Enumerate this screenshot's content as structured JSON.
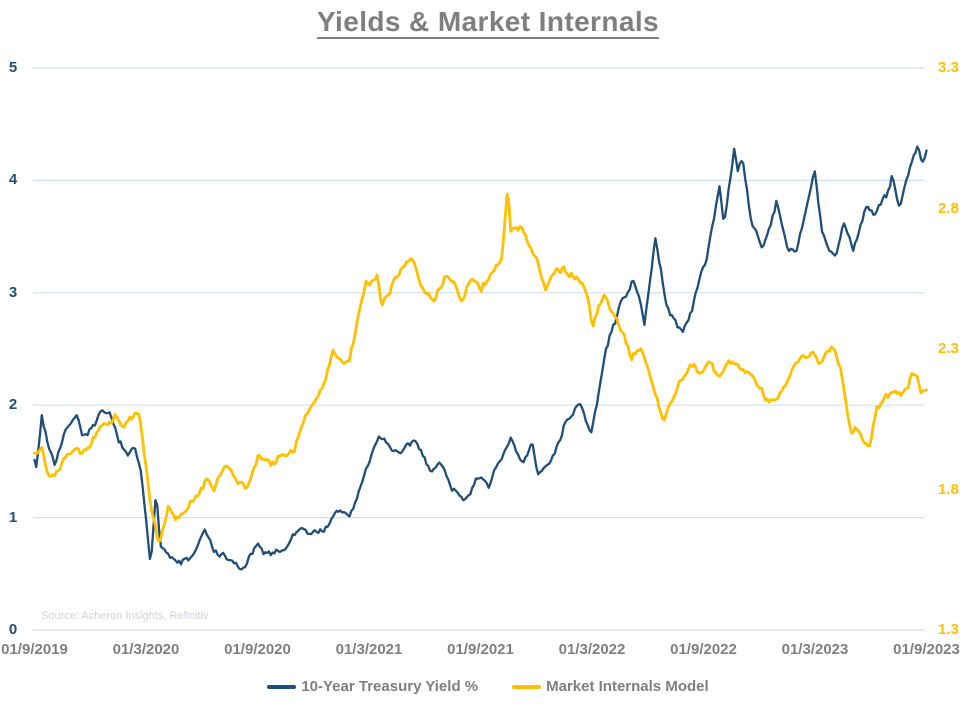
{
  "chart_data": {
    "type": "line",
    "title": "Yields & Market Internals",
    "source_note": "Source: Acheron Insights, Refinitiv",
    "grid_color": "#cfe0ef",
    "legend_position": "bottom",
    "x_axis": {
      "start_date": "2019-09-01",
      "end_date": "2023-09-01",
      "tick_labels": [
        "01/9/2019",
        "01/3/2020",
        "01/9/2020",
        "01/3/2021",
        "01/9/2021",
        "01/3/2022",
        "01/9/2022",
        "01/3/2023",
        "01/9/2023"
      ],
      "grid": false
    },
    "y_axis_left": {
      "min": 0,
      "max": 5,
      "ticks": [
        0,
        1,
        2,
        3,
        4,
        5
      ],
      "tick_color": "#1f4e79",
      "grid": true
    },
    "y_axis_right": {
      "min": 1.3,
      "max": 3.3,
      "ticks": [
        1.3,
        1.8,
        2.3,
        2.8,
        3.3
      ],
      "tick_color": "#ffc000",
      "grid": false
    },
    "series": [
      {
        "name": "10-Year Treasury Yield %",
        "axis": "left",
        "color": "#1f4e79",
        "stroke_width": 2.3,
        "seed": 7,
        "data_name": "treasury-yield-line",
        "points": [
          [
            "2019-09-01",
            1.55
          ],
          [
            "2019-09-04",
            1.44
          ],
          [
            "2019-09-13",
            1.9
          ],
          [
            "2019-09-24",
            1.64
          ],
          [
            "2019-10-04",
            1.52
          ],
          [
            "2019-10-20",
            1.76
          ],
          [
            "2019-11-08",
            1.94
          ],
          [
            "2019-11-20",
            1.74
          ],
          [
            "2019-12-05",
            1.8
          ],
          [
            "2019-12-19",
            1.92
          ],
          [
            "2020-01-02",
            1.88
          ],
          [
            "2020-01-31",
            1.52
          ],
          [
            "2020-02-12",
            1.63
          ],
          [
            "2020-02-21",
            1.47
          ],
          [
            "2020-03-04",
            0.84
          ],
          [
            "2020-03-09",
            0.54
          ],
          [
            "2020-03-13",
            0.85
          ],
          [
            "2020-03-18",
            1.26
          ],
          [
            "2020-03-25",
            0.8
          ],
          [
            "2020-04-21",
            0.58
          ],
          [
            "2020-05-15",
            0.64
          ],
          [
            "2020-06-05",
            0.88
          ],
          [
            "2020-06-20",
            0.7
          ],
          [
            "2020-07-15",
            0.63
          ],
          [
            "2020-08-06",
            0.52
          ],
          [
            "2020-08-28",
            0.72
          ],
          [
            "2020-09-20",
            0.66
          ],
          [
            "2020-10-15",
            0.74
          ],
          [
            "2020-11-10",
            0.92
          ],
          [
            "2020-11-25",
            0.84
          ],
          [
            "2020-12-20",
            0.92
          ],
          [
            "2021-01-13",
            1.05
          ],
          [
            "2021-01-29",
            1.02
          ],
          [
            "2021-02-25",
            1.4
          ],
          [
            "2021-03-19",
            1.73
          ],
          [
            "2021-04-22",
            1.56
          ],
          [
            "2021-05-13",
            1.66
          ],
          [
            "2021-06-11",
            1.45
          ],
          [
            "2021-06-25",
            1.5
          ],
          [
            "2021-07-20",
            1.25
          ],
          [
            "2021-08-03",
            1.18
          ],
          [
            "2021-08-26",
            1.34
          ],
          [
            "2021-09-14",
            1.28
          ],
          [
            "2021-09-30",
            1.52
          ],
          [
            "2021-10-21",
            1.67
          ],
          [
            "2021-11-09",
            1.44
          ],
          [
            "2021-11-24",
            1.66
          ],
          [
            "2021-12-03",
            1.35
          ],
          [
            "2021-12-20",
            1.45
          ],
          [
            "2022-01-03",
            1.65
          ],
          [
            "2022-01-18",
            1.87
          ],
          [
            "2022-02-11",
            2.04
          ],
          [
            "2022-03-01",
            1.72
          ],
          [
            "2022-03-25",
            2.48
          ],
          [
            "2022-04-11",
            2.78
          ],
          [
            "2022-04-20",
            2.94
          ],
          [
            "2022-05-09",
            3.12
          ],
          [
            "2022-05-27",
            2.74
          ],
          [
            "2022-06-14",
            3.48
          ],
          [
            "2022-07-01",
            2.89
          ],
          [
            "2022-07-29",
            2.64
          ],
          [
            "2022-08-22",
            3.03
          ],
          [
            "2022-09-06",
            3.33
          ],
          [
            "2022-09-27",
            3.96
          ],
          [
            "2022-10-04",
            3.62
          ],
          [
            "2022-10-21",
            4.25
          ],
          [
            "2022-10-27",
            4.08
          ],
          [
            "2022-11-04",
            4.2
          ],
          [
            "2022-11-16",
            3.67
          ],
          [
            "2022-12-07",
            3.41
          ],
          [
            "2022-12-30",
            3.83
          ],
          [
            "2023-01-18",
            3.39
          ],
          [
            "2023-02-02",
            3.42
          ],
          [
            "2023-02-15",
            3.75
          ],
          [
            "2023-03-02",
            4.06
          ],
          [
            "2023-03-13",
            3.55
          ],
          [
            "2023-03-24",
            3.38
          ],
          [
            "2023-04-06",
            3.31
          ],
          [
            "2023-04-19",
            3.6
          ],
          [
            "2023-05-04",
            3.37
          ],
          [
            "2023-05-26",
            3.8
          ],
          [
            "2023-06-06",
            3.69
          ],
          [
            "2023-06-29",
            3.85
          ],
          [
            "2023-07-07",
            4.05
          ],
          [
            "2023-07-19",
            3.75
          ],
          [
            "2023-08-03",
            4.08
          ],
          [
            "2023-08-18",
            4.32
          ],
          [
            "2023-08-25",
            4.15
          ],
          [
            "2023-09-01",
            4.27
          ]
        ]
      },
      {
        "name": "Market Internals Model",
        "axis": "right",
        "color": "#ffc000",
        "stroke_width": 2.8,
        "seed": 13,
        "data_name": "market-internals-line",
        "points": [
          [
            "2019-09-01",
            1.93
          ],
          [
            "2019-09-12",
            1.97
          ],
          [
            "2019-09-24",
            1.85
          ],
          [
            "2019-10-08",
            1.87
          ],
          [
            "2019-10-20",
            1.93
          ],
          [
            "2019-11-05",
            1.97
          ],
          [
            "2019-11-20",
            1.94
          ],
          [
            "2019-12-05",
            1.99
          ],
          [
            "2019-12-20",
            2.02
          ],
          [
            "2020-01-10",
            2.06
          ],
          [
            "2020-01-24",
            2.02
          ],
          [
            "2020-02-12",
            2.07
          ],
          [
            "2020-02-21",
            2.04
          ],
          [
            "2020-03-02",
            1.88
          ],
          [
            "2020-03-12",
            1.7
          ],
          [
            "2020-03-23",
            1.61
          ],
          [
            "2020-04-08",
            1.74
          ],
          [
            "2020-04-20",
            1.68
          ],
          [
            "2020-05-08",
            1.73
          ],
          [
            "2020-05-25",
            1.77
          ],
          [
            "2020-06-08",
            1.83
          ],
          [
            "2020-06-22",
            1.8
          ],
          [
            "2020-07-14",
            1.9
          ],
          [
            "2020-08-10",
            1.8
          ],
          [
            "2020-09-02",
            1.91
          ],
          [
            "2020-09-22",
            1.88
          ],
          [
            "2020-10-08",
            1.92
          ],
          [
            "2020-10-30",
            1.94
          ],
          [
            "2020-11-09",
            2.0
          ],
          [
            "2020-11-16",
            2.06
          ],
          [
            "2020-12-01",
            2.12
          ],
          [
            "2020-12-20",
            2.17
          ],
          [
            "2021-01-02",
            2.29
          ],
          [
            "2021-01-12",
            2.27
          ],
          [
            "2021-01-28",
            2.24
          ],
          [
            "2021-02-14",
            2.44
          ],
          [
            "2021-02-25",
            2.53
          ],
          [
            "2021-03-15",
            2.56
          ],
          [
            "2021-03-22",
            2.46
          ],
          [
            "2021-04-05",
            2.5
          ],
          [
            "2021-04-26",
            2.59
          ],
          [
            "2021-05-12",
            2.63
          ],
          [
            "2021-05-26",
            2.55
          ],
          [
            "2021-06-15",
            2.47
          ],
          [
            "2021-07-05",
            2.56
          ],
          [
            "2021-07-20",
            2.52
          ],
          [
            "2021-08-02",
            2.46
          ],
          [
            "2021-08-16",
            2.56
          ],
          [
            "2021-09-01",
            2.51
          ],
          [
            "2021-09-20",
            2.58
          ],
          [
            "2021-10-06",
            2.62
          ],
          [
            "2021-10-15",
            2.88
          ],
          [
            "2021-10-20",
            2.71
          ],
          [
            "2021-11-05",
            2.72
          ],
          [
            "2021-11-22",
            2.66
          ],
          [
            "2021-12-02",
            2.62
          ],
          [
            "2021-12-16",
            2.51
          ],
          [
            "2022-01-03",
            2.6
          ],
          [
            "2022-01-20",
            2.58
          ],
          [
            "2022-02-08",
            2.55
          ],
          [
            "2022-02-22",
            2.5
          ],
          [
            "2022-03-03",
            2.37
          ],
          [
            "2022-03-21",
            2.49
          ],
          [
            "2022-04-06",
            2.42
          ],
          [
            "2022-04-21",
            2.35
          ],
          [
            "2022-05-06",
            2.26
          ],
          [
            "2022-05-20",
            2.3
          ],
          [
            "2022-06-06",
            2.18
          ],
          [
            "2022-06-28",
            2.04
          ],
          [
            "2022-07-12",
            2.12
          ],
          [
            "2022-07-26",
            2.19
          ],
          [
            "2022-08-10",
            2.25
          ],
          [
            "2022-08-25",
            2.22
          ],
          [
            "2022-09-12",
            2.26
          ],
          [
            "2022-09-26",
            2.19
          ],
          [
            "2022-10-11",
            2.25
          ],
          [
            "2022-10-26",
            2.24
          ],
          [
            "2022-11-10",
            2.21
          ],
          [
            "2022-11-25",
            2.19
          ],
          [
            "2022-12-12",
            2.11
          ],
          [
            "2022-12-27",
            2.1
          ],
          [
            "2023-01-11",
            2.15
          ],
          [
            "2023-01-26",
            2.23
          ],
          [
            "2023-02-10",
            2.27
          ],
          [
            "2023-02-24",
            2.29
          ],
          [
            "2023-03-10",
            2.25
          ],
          [
            "2023-03-24",
            2.3
          ],
          [
            "2023-04-03",
            2.31
          ],
          [
            "2023-04-14",
            2.22
          ],
          [
            "2023-04-24",
            2.08
          ],
          [
            "2023-05-02",
            1.99
          ],
          [
            "2023-05-11",
            2.03
          ],
          [
            "2023-05-22",
            1.97
          ],
          [
            "2023-05-31",
            1.96
          ],
          [
            "2023-06-12",
            2.08
          ],
          [
            "2023-06-26",
            2.11
          ],
          [
            "2023-07-11",
            2.15
          ],
          [
            "2023-07-25",
            2.13
          ],
          [
            "2023-08-07",
            2.2
          ],
          [
            "2023-08-16",
            2.22
          ],
          [
            "2023-08-23",
            2.16
          ],
          [
            "2023-09-01",
            2.17
          ]
        ]
      }
    ]
  }
}
